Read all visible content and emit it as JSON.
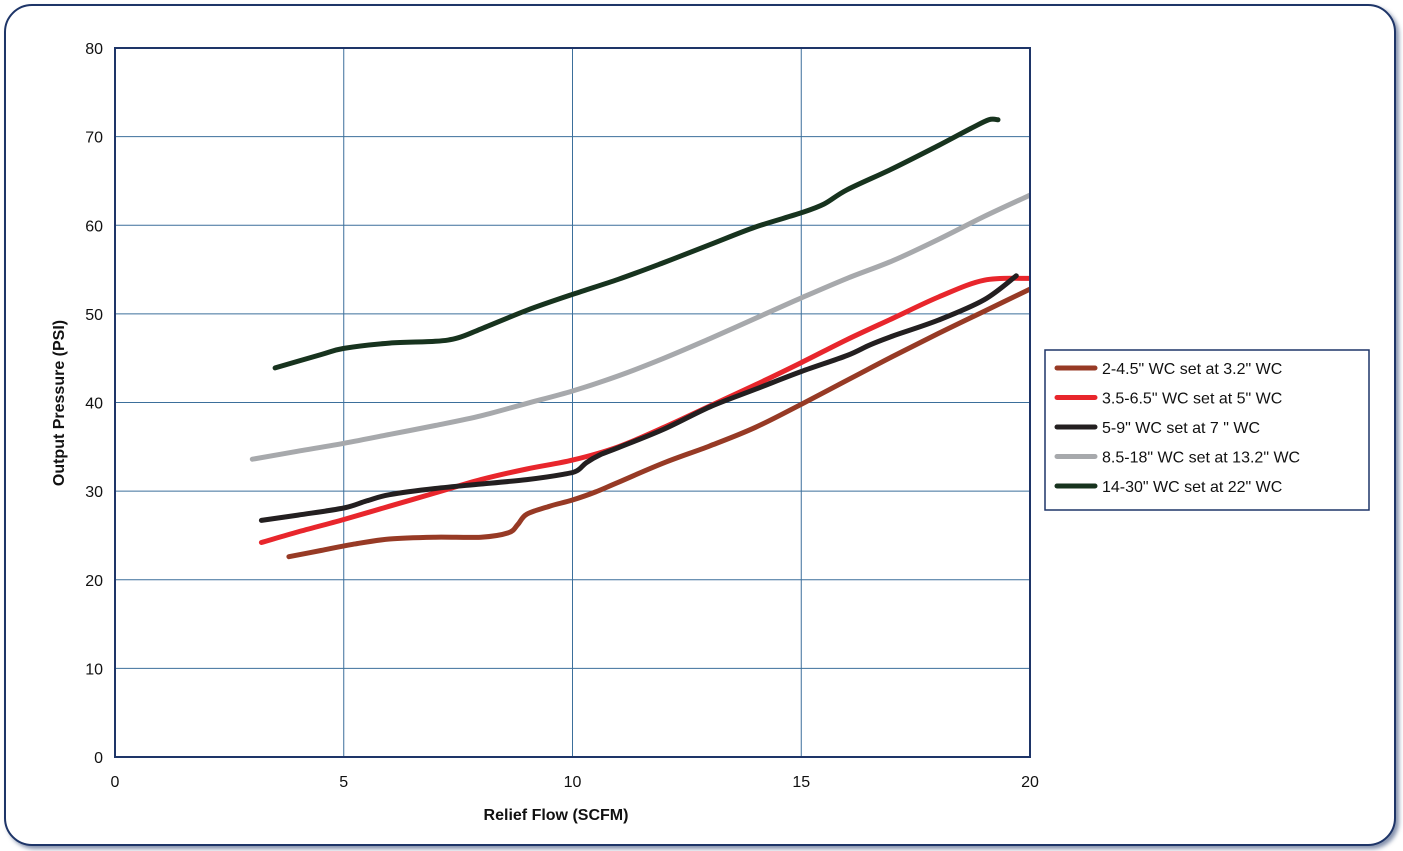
{
  "chart_data": {
    "type": "line",
    "xlabel": "Relief Flow (SCFM)",
    "ylabel": "Output Pressure (PSI)",
    "xlim": [
      0,
      20
    ],
    "ylim": [
      0,
      80
    ],
    "x_ticks": [
      "0",
      "5",
      "10",
      "15",
      "20"
    ],
    "y_ticks": [
      "0",
      "10",
      "20",
      "30",
      "40",
      "50",
      "60",
      "70",
      "80"
    ],
    "grid": true,
    "legend_position": "right",
    "series": [
      {
        "name": "2-4.5\" WC set at 3.2\" WC",
        "color": "#973a25",
        "points": [
          [
            3.8,
            22.6
          ],
          [
            4.5,
            23.3
          ],
          [
            5.2,
            24.0
          ],
          [
            6,
            24.6
          ],
          [
            7,
            24.8
          ],
          [
            8,
            24.8
          ],
          [
            8.6,
            25.3
          ],
          [
            8.8,
            26.2
          ],
          [
            9.0,
            27.4
          ],
          [
            9.5,
            28.3
          ],
          [
            10,
            29.0
          ],
          [
            10.5,
            29.9
          ],
          [
            11,
            31.0
          ],
          [
            12,
            33.2
          ],
          [
            13,
            35.1
          ],
          [
            14,
            37.2
          ],
          [
            15,
            39.8
          ],
          [
            16,
            42.5
          ],
          [
            17,
            45.2
          ],
          [
            18,
            47.8
          ],
          [
            19,
            50.3
          ],
          [
            20,
            52.8
          ]
        ]
      },
      {
        "name": "3.5-6.5\" WC set at 5\" WC",
        "color": "#e8262c",
        "points": [
          [
            3.2,
            24.2
          ],
          [
            4,
            25.4
          ],
          [
            5,
            26.8
          ],
          [
            6,
            28.3
          ],
          [
            7,
            29.8
          ],
          [
            8,
            31.3
          ],
          [
            9,
            32.5
          ],
          [
            10,
            33.5
          ],
          [
            11,
            35.0
          ],
          [
            12,
            37.2
          ],
          [
            13,
            39.6
          ],
          [
            14,
            42.0
          ],
          [
            15,
            44.5
          ],
          [
            16,
            47.1
          ],
          [
            17,
            49.5
          ],
          [
            18,
            51.9
          ],
          [
            19,
            53.8
          ],
          [
            20,
            54.0
          ]
        ]
      },
      {
        "name": "5-9\" WC set at 7 \" WC",
        "color": "#231f20",
        "points": [
          [
            3.2,
            26.7
          ],
          [
            4,
            27.3
          ],
          [
            5,
            28.1
          ],
          [
            5.5,
            28.9
          ],
          [
            6,
            29.6
          ],
          [
            7,
            30.3
          ],
          [
            8,
            30.8
          ],
          [
            9,
            31.3
          ],
          [
            9.8,
            31.9
          ],
          [
            10.1,
            32.3
          ],
          [
            10.3,
            33.2
          ],
          [
            10.6,
            34.1
          ],
          [
            11,
            34.9
          ],
          [
            12,
            37.0
          ],
          [
            13,
            39.5
          ],
          [
            14,
            41.5
          ],
          [
            15,
            43.5
          ],
          [
            16,
            45.3
          ],
          [
            16.5,
            46.5
          ],
          [
            17,
            47.5
          ],
          [
            18,
            49.3
          ],
          [
            19,
            51.6
          ],
          [
            19.7,
            54.3
          ]
        ]
      },
      {
        "name": "8.5-18\" WC set at 13.2\" WC",
        "color": "#a7a9ac",
        "points": [
          [
            3,
            33.6
          ],
          [
            4,
            34.5
          ],
          [
            5,
            35.4
          ],
          [
            6,
            36.4
          ],
          [
            7,
            37.4
          ],
          [
            8,
            38.5
          ],
          [
            9,
            39.9
          ],
          [
            10,
            41.3
          ],
          [
            11,
            43.0
          ],
          [
            12,
            45.0
          ],
          [
            13,
            47.2
          ],
          [
            14,
            49.5
          ],
          [
            15,
            51.8
          ],
          [
            16,
            54.0
          ],
          [
            17,
            56.0
          ],
          [
            18,
            58.4
          ],
          [
            19,
            61.0
          ],
          [
            20,
            63.4
          ]
        ]
      },
      {
        "name": "14-30\" WC set at 22\" WC",
        "color": "#17331e",
        "points": [
          [
            3.5,
            43.9
          ],
          [
            4.5,
            45.4
          ],
          [
            5,
            46.1
          ],
          [
            6,
            46.7
          ],
          [
            7,
            46.9
          ],
          [
            7.5,
            47.3
          ],
          [
            8,
            48.3
          ],
          [
            9,
            50.4
          ],
          [
            10,
            52.2
          ],
          [
            11,
            53.9
          ],
          [
            12,
            55.8
          ],
          [
            13,
            57.8
          ],
          [
            14,
            59.8
          ],
          [
            15,
            61.4
          ],
          [
            15.5,
            62.4
          ],
          [
            16,
            64.0
          ],
          [
            17,
            66.4
          ],
          [
            18,
            69.0
          ],
          [
            18.7,
            70.9
          ],
          [
            19.1,
            71.9
          ],
          [
            19.3,
            71.9
          ]
        ]
      }
    ]
  }
}
